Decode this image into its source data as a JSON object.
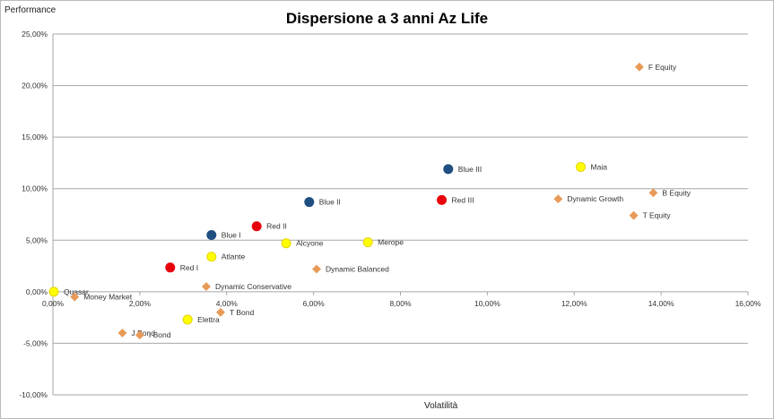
{
  "chart_data": {
    "type": "scatter",
    "title": "Dispersione a 3 anni Az Life",
    "xlabel": "Volatilità",
    "ylabel": "Performance",
    "xlim": [
      0,
      16
    ],
    "ylim": [
      -10,
      25
    ],
    "x_ticks": [
      "0,00%",
      "2,00%",
      "4,00%",
      "6,00%",
      "8,00%",
      "10,00%",
      "12,00%",
      "14,00%",
      "16,00%"
    ],
    "y_ticks": [
      "-10,00%",
      "-5,00%",
      "0,00%",
      "5,00%",
      "10,00%",
      "15,00%",
      "20,00%",
      "25,00%"
    ],
    "grid": "horizontal",
    "units": "percent",
    "colors": {
      "blue": "#1f4e80",
      "red": "#e8000b",
      "yellow": "#ffff00",
      "orange": "#e89a58"
    },
    "points": [
      {
        "label": "Quasar",
        "x": 0.02,
        "y": 0.0,
        "color": "yellow",
        "marker": "circle"
      },
      {
        "label": "Money Market",
        "x": 0.5,
        "y": -0.5,
        "color": "orange",
        "marker": "diamond"
      },
      {
        "label": "J Bond",
        "x": 1.6,
        "y": -4.0,
        "color": "orange",
        "marker": "diamond"
      },
      {
        "label": "I Bond",
        "x": 2.0,
        "y": -4.2,
        "color": "orange",
        "marker": "diamond"
      },
      {
        "label": "Red I",
        "x": 2.7,
        "y": 2.35,
        "color": "red",
        "marker": "circle"
      },
      {
        "label": "Elettra",
        "x": 3.1,
        "y": -2.7,
        "color": "yellow",
        "marker": "circle"
      },
      {
        "label": "Dynamic Conservative",
        "x": 3.53,
        "y": 0.5,
        "color": "orange",
        "marker": "diamond"
      },
      {
        "label": "Blue I",
        "x": 3.65,
        "y": 5.5,
        "color": "blue",
        "marker": "circle"
      },
      {
        "label": "Atlante",
        "x": 3.65,
        "y": 3.4,
        "color": "yellow",
        "marker": "circle"
      },
      {
        "label": "T Bond",
        "x": 3.86,
        "y": -2.0,
        "color": "orange",
        "marker": "diamond"
      },
      {
        "label": "Red II",
        "x": 4.69,
        "y": 6.35,
        "color": "red",
        "marker": "circle"
      },
      {
        "label": "Alcyone",
        "x": 5.37,
        "y": 4.7,
        "color": "yellow",
        "marker": "circle"
      },
      {
        "label": "Blue II",
        "x": 5.9,
        "y": 8.7,
        "color": "blue",
        "marker": "circle"
      },
      {
        "label": "Dynamic Balanced",
        "x": 6.07,
        "y": 2.2,
        "color": "orange",
        "marker": "diamond"
      },
      {
        "label": "Merope",
        "x": 7.25,
        "y": 4.8,
        "color": "yellow",
        "marker": "circle"
      },
      {
        "label": "Red III",
        "x": 8.95,
        "y": 8.9,
        "color": "red",
        "marker": "circle"
      },
      {
        "label": "Blue III",
        "x": 9.1,
        "y": 11.9,
        "color": "blue",
        "marker": "circle"
      },
      {
        "label": "Dynamic Growth",
        "x": 11.63,
        "y": 9.0,
        "color": "orange",
        "marker": "diamond"
      },
      {
        "label": "Maia",
        "x": 12.15,
        "y": 12.1,
        "color": "yellow",
        "marker": "circle"
      },
      {
        "label": "T Equity",
        "x": 13.37,
        "y": 7.4,
        "color": "orange",
        "marker": "diamond"
      },
      {
        "label": "F Equity",
        "x": 13.5,
        "y": 21.8,
        "color": "orange",
        "marker": "diamond"
      },
      {
        "label": "B Equity",
        "x": 13.82,
        "y": 9.6,
        "color": "orange",
        "marker": "diamond"
      }
    ]
  }
}
